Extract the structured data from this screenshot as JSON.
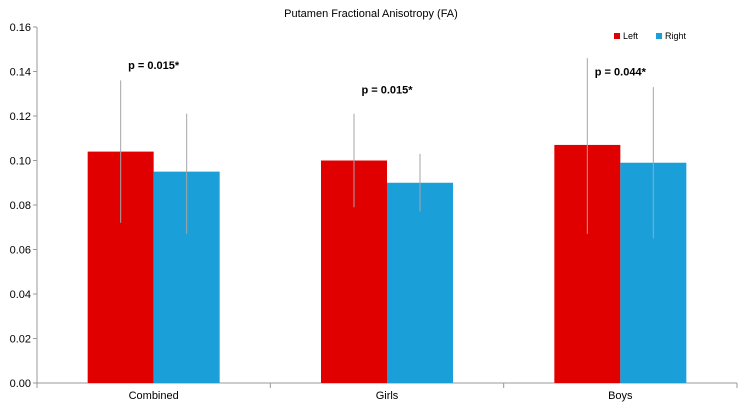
{
  "chart_data": {
    "type": "bar",
    "title": "Putamen Fractional Anisotropy (FA)",
    "xlabel": "",
    "ylabel": "",
    "ylim": [
      0,
      0.16
    ],
    "y_ticks": [
      "0.00",
      "0.02",
      "0.04",
      "0.06",
      "0.08",
      "0.10",
      "0.12",
      "0.14",
      "0.16"
    ],
    "y_tick_values": [
      0,
      0.02,
      0.04,
      0.06,
      0.08,
      0.1,
      0.12,
      0.14,
      0.16
    ],
    "grid": false,
    "legend_position": "top-right",
    "categories": [
      "Combined",
      "Girls",
      "Boys"
    ],
    "series": [
      {
        "name": "Left",
        "color": "#e00000",
        "values": [
          0.104,
          0.1,
          0.107
        ],
        "error_low": [
          0.072,
          0.079,
          0.067
        ],
        "error_high": [
          0.136,
          0.121,
          0.146
        ]
      },
      {
        "name": "Right",
        "color": "#1a9fd9",
        "values": [
          0.095,
          0.09,
          0.099
        ],
        "error_low": [
          0.067,
          0.077,
          0.065
        ],
        "error_high": [
          0.121,
          0.103,
          0.133
        ]
      }
    ],
    "annotations": [
      {
        "text": "p = 0.015*",
        "category": "Combined",
        "y": 0.143
      },
      {
        "text": "p = 0.015*",
        "category": "Girls",
        "y": 0.132
      },
      {
        "text": "p = 0.044*",
        "category": "Boys",
        "y": 0.14
      }
    ]
  }
}
